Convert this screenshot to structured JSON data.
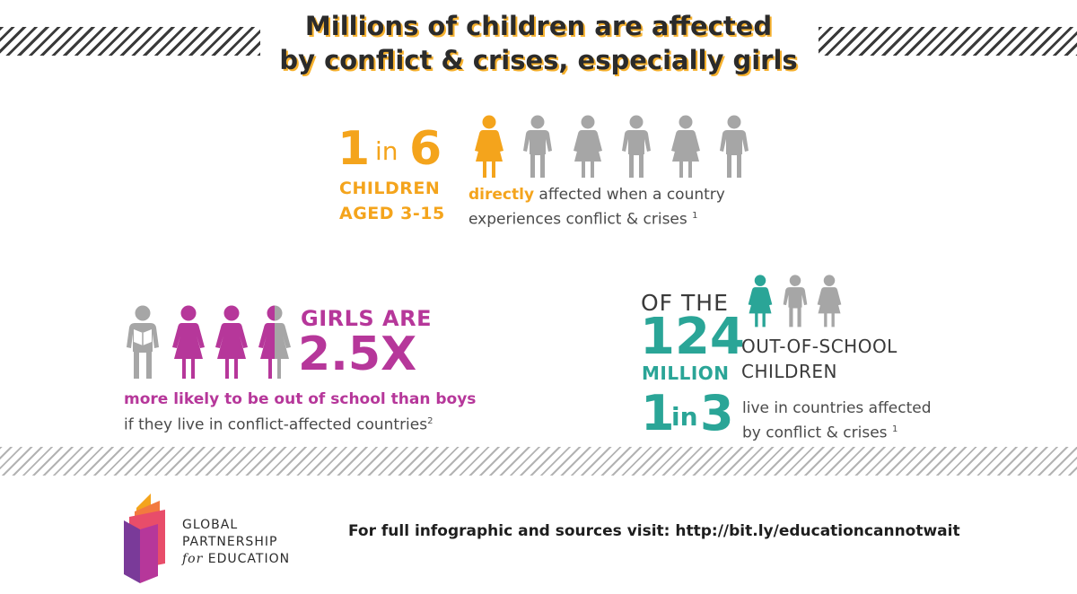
{
  "title": {
    "line1": "Millions of children are affected",
    "line2": "by conflict & crises, especially girls"
  },
  "stat1": {
    "num_a": "1",
    "in": "in",
    "num_b": "6",
    "label_line1": "CHILDREN",
    "label_line2": "AGED 3-15",
    "desc_highlight": "directly",
    "desc_line1_rest": " affected when a country",
    "desc_line2": "experiences conflict & crises",
    "footnote": "1",
    "figures_highlighted": 1,
    "figures_total": 6
  },
  "stat2": {
    "label_line1": "GIRLS ARE",
    "label_line2": "2.5X",
    "desc_line1": "more likely to be out of school than boys",
    "desc_line2": "if they live in conflict-affected countries",
    "footnote": "2"
  },
  "stat3": {
    "of_the": "OF THE",
    "number": "124",
    "million": "MILLION",
    "oos_line1": "OUT-OF-SCHOOL",
    "oos_line2": "CHILDREN",
    "ratio_a": "1",
    "ratio_in": "in",
    "ratio_b": "3",
    "desc_line1": "live in countries affected",
    "desc_line2": "by conflict & crises",
    "footnote": "1",
    "figures_highlighted": 1,
    "figures_total": 3
  },
  "footer": {
    "org_line1": "GLOBAL",
    "org_line2": "PARTNERSHIP",
    "org_line3_for": "for",
    "org_line3_rest": " EDUCATION",
    "link_text": "For full infographic and sources visit: http://bit.ly/educationcannotwait"
  },
  "colors": {
    "orange": "#f4a41c",
    "magenta": "#b6379a",
    "teal": "#2aa597",
    "grey": "#a6a6a6",
    "dark": "#2b2b2b"
  }
}
